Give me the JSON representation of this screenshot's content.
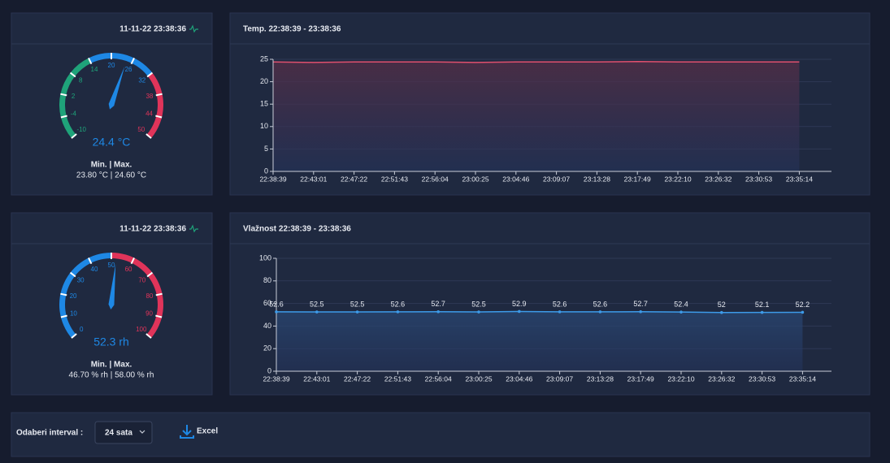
{
  "panels": [
    {
      "timestamp": "11-11-22 23:38:36",
      "gauge": {
        "min": -10,
        "max": 50,
        "value": 24.4,
        "value_label": "24.4 °C",
        "ticks": [
          -10,
          -4,
          2,
          8,
          14,
          20,
          26,
          32,
          38,
          44,
          50
        ],
        "bands": [
          {
            "from": -10,
            "to": 14,
            "color": "#1fa37a"
          },
          {
            "from": 14,
            "to": 32,
            "color": "#1e88e5"
          },
          {
            "from": 32,
            "to": 50,
            "color": "#e0345a"
          }
        ],
        "stats_title": "Min. | Max.",
        "stats": "23.80 °C | 24.60 °C"
      },
      "chart": {
        "type": "line",
        "title": "Temp. 22:38:39 - 23:38:36",
        "categories": [
          "22:38:39",
          "22:43:01",
          "22:47:22",
          "22:51:43",
          "22:56:04",
          "23:00:25",
          "23:04:46",
          "23:09:07",
          "23:13:28",
          "23:17:49",
          "23:22:10",
          "23:26:32",
          "23:30:53",
          "23:35:14"
        ],
        "values": [
          24.4,
          24.3,
          24.4,
          24.4,
          24.4,
          24.3,
          24.4,
          24.4,
          24.4,
          24.5,
          24.4,
          24.4,
          24.4,
          24.4
        ],
        "color": "#e0506e",
        "ylim": [
          0,
          25
        ],
        "yticks": [
          0,
          5,
          10,
          15,
          20,
          25
        ],
        "data_labels": false,
        "grid": true
      }
    },
    {
      "timestamp": "11-11-22 23:38:36",
      "gauge": {
        "min": 0,
        "max": 100,
        "value": 52.3,
        "value_label": "52.3 rh",
        "ticks": [
          0,
          10,
          20,
          30,
          40,
          50,
          60,
          70,
          80,
          90,
          100
        ],
        "bands": [
          {
            "from": 0,
            "to": 50,
            "color": "#1e88e5"
          },
          {
            "from": 50,
            "to": 100,
            "color": "#e0345a"
          }
        ],
        "stats_title": "Min. | Max.",
        "stats": "46.70 % rh | 58.00 % rh"
      },
      "chart": {
        "type": "line",
        "title": "Vlažnost 22:38:39 - 23:38:36",
        "categories": [
          "22:38:39",
          "22:43:01",
          "22:47:22",
          "22:51:43",
          "22:56:04",
          "23:00:25",
          "23:04:46",
          "23:09:07",
          "23:13:28",
          "23:17:49",
          "23:22:10",
          "23:26:32",
          "23:30:53",
          "23:35:14"
        ],
        "values": [
          52.6,
          52.5,
          52.5,
          52.6,
          52.7,
          52.5,
          52.9,
          52.6,
          52.6,
          52.7,
          52.4,
          52,
          52.1,
          52.2
        ],
        "color": "#3d9be9",
        "ylim": [
          0,
          100
        ],
        "yticks": [
          0,
          20,
          40,
          60,
          80,
          100
        ],
        "data_labels": true,
        "grid": true
      }
    }
  ],
  "footer": {
    "interval_label": "Odaberi interval :",
    "interval_value": "24 sata",
    "export": "Excel"
  }
}
